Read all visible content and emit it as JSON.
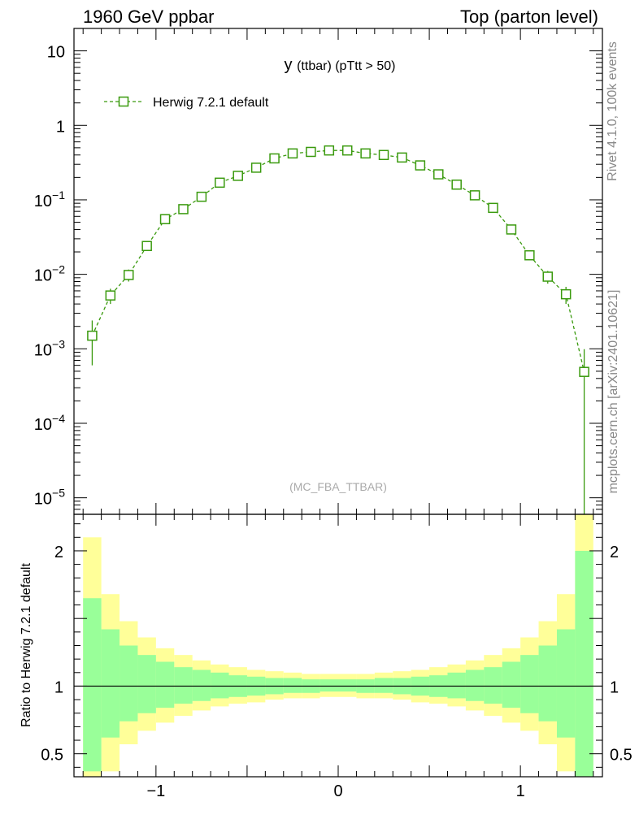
{
  "header": {
    "left_title": "1960 GeV ppbar",
    "right_title": "Top (parton level)"
  },
  "side_labels": {
    "rivet": "Rivet 4.1.0,  100k events",
    "mcplots": "mcplots.cern.ch [arXiv:2401.10621]"
  },
  "colors": {
    "series": "#3a9a0e",
    "band_inner": "#99ff99",
    "band_outer": "#ffff99",
    "watermark": "#aaaaaa"
  },
  "chart_data": [
    {
      "type": "line",
      "title": "y (ttbar) (pTtt > 50)",
      "title_main": "y",
      "title_sub": "(ttbar) (pTtt > 50)",
      "watermark": "(MC_FBA_TTBAR)",
      "yscale": "log",
      "ylim": [
        6e-06,
        20
      ],
      "xlim": [
        -1.45,
        1.45
      ],
      "y_ticks": [
        {
          "value": 10,
          "label": "10"
        },
        {
          "value": 1,
          "label": "1"
        },
        {
          "value": 0.1,
          "label": "10",
          "exp": "−1"
        },
        {
          "value": 0.01,
          "label": "10",
          "exp": "−2"
        },
        {
          "value": 0.001,
          "label": "10",
          "exp": "−3"
        },
        {
          "value": 0.0001,
          "label": "10",
          "exp": "−4"
        },
        {
          "value": 1e-05,
          "label": "10",
          "exp": "−5"
        }
      ],
      "legend": {
        "label": "Herwig 7.2.1 default",
        "placement": "top-left"
      },
      "series": [
        {
          "name": "Herwig 7.2.1 default",
          "x": [
            -1.35,
            -1.25,
            -1.15,
            -1.05,
            -0.95,
            -0.85,
            -0.75,
            -0.65,
            -0.55,
            -0.45,
            -0.35,
            -0.25,
            -0.15,
            -0.05,
            0.05,
            0.15,
            0.25,
            0.35,
            0.45,
            0.55,
            0.65,
            0.75,
            0.85,
            0.95,
            1.05,
            1.15,
            1.25,
            1.35
          ],
          "y": [
            0.0015,
            0.0052,
            0.0098,
            0.024,
            0.055,
            0.075,
            0.11,
            0.17,
            0.21,
            0.27,
            0.36,
            0.42,
            0.44,
            0.46,
            0.46,
            0.42,
            0.4,
            0.37,
            0.29,
            0.22,
            0.16,
            0.115,
            0.078,
            0.04,
            0.018,
            0.0093,
            0.0054,
            0.00049
          ],
          "yerr_low": [
            0.0009,
            0.0012,
            0.0018,
            0.0025,
            0.004,
            0.005,
            0.006,
            0.008,
            0.009,
            0.01,
            0.012,
            0.013,
            0.013,
            0.013,
            0.013,
            0.013,
            0.012,
            0.012,
            0.011,
            0.01,
            0.008,
            0.006,
            0.005,
            0.003,
            0.0025,
            0.0018,
            0.0014,
            0.00049
          ],
          "yerr_high": [
            0.0009,
            0.0012,
            0.0018,
            0.0025,
            0.004,
            0.005,
            0.006,
            0.008,
            0.009,
            0.01,
            0.012,
            0.013,
            0.013,
            0.013,
            0.013,
            0.013,
            0.012,
            0.012,
            0.011,
            0.01,
            0.008,
            0.006,
            0.005,
            0.003,
            0.0025,
            0.0018,
            0.0014,
            0.0005
          ]
        }
      ]
    },
    {
      "type": "area",
      "ylabel": "Ratio to Herwig 7.2.1 default",
      "xlim": [
        -1.45,
        1.45
      ],
      "ylim": [
        0.33,
        2.27
      ],
      "y_ticks": [
        {
          "value": 2,
          "label": "2"
        },
        {
          "value": 1,
          "label": "1"
        },
        {
          "value": 0.5,
          "label": "0.5"
        }
      ],
      "x_ticks": [
        {
          "value": -1,
          "label": "−1"
        },
        {
          "value": 0,
          "label": "0"
        },
        {
          "value": 1,
          "label": "1"
        }
      ],
      "bin_edges": [
        -1.4,
        -1.3,
        -1.2,
        -1.1,
        -1.0,
        -0.9,
        -0.8,
        -0.7,
        -0.6,
        -0.5,
        -0.4,
        -0.3,
        -0.2,
        -0.1,
        0.0,
        0.1,
        0.2,
        0.3,
        0.4,
        0.5,
        0.6,
        0.7,
        0.8,
        0.9,
        1.0,
        1.1,
        1.2,
        1.3,
        1.4
      ],
      "inner_band": {
        "low": [
          0.37,
          0.62,
          0.74,
          0.8,
          0.84,
          0.87,
          0.89,
          0.91,
          0.92,
          0.93,
          0.94,
          0.95,
          0.95,
          0.96,
          0.96,
          0.95,
          0.95,
          0.94,
          0.93,
          0.92,
          0.91,
          0.89,
          0.87,
          0.84,
          0.8,
          0.74,
          0.62,
          0.0
        ],
        "high": [
          1.65,
          1.42,
          1.3,
          1.23,
          1.18,
          1.14,
          1.12,
          1.1,
          1.08,
          1.07,
          1.06,
          1.06,
          1.05,
          1.05,
          1.05,
          1.05,
          1.06,
          1.06,
          1.07,
          1.08,
          1.1,
          1.12,
          1.14,
          1.18,
          1.23,
          1.3,
          1.42,
          2.0
        ]
      },
      "outer_band": {
        "low": [
          0.0,
          0.37,
          0.57,
          0.67,
          0.73,
          0.78,
          0.82,
          0.85,
          0.87,
          0.88,
          0.9,
          0.91,
          0.91,
          0.92,
          0.92,
          0.91,
          0.91,
          0.9,
          0.88,
          0.87,
          0.85,
          0.82,
          0.78,
          0.73,
          0.67,
          0.57,
          0.37,
          0.0
        ],
        "high": [
          2.1,
          1.68,
          1.48,
          1.36,
          1.28,
          1.23,
          1.19,
          1.16,
          1.14,
          1.12,
          1.11,
          1.1,
          1.09,
          1.09,
          1.09,
          1.09,
          1.1,
          1.11,
          1.12,
          1.14,
          1.16,
          1.19,
          1.23,
          1.28,
          1.36,
          1.48,
          1.68,
          2.27
        ]
      }
    }
  ]
}
